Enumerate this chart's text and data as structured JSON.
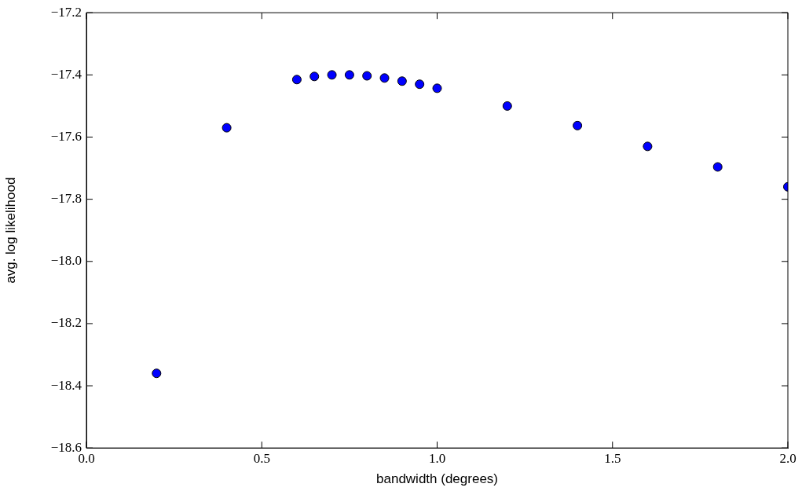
{
  "chart_data": {
    "type": "scatter",
    "xlabel": "bandwidth (degrees)",
    "ylabel": "avg. log likelihood",
    "x": [
      0.2,
      0.4,
      0.6,
      0.65,
      0.7,
      0.75,
      0.8,
      0.85,
      0.9,
      0.95,
      1.0,
      1.2,
      1.4,
      1.6,
      1.8,
      2.0
    ],
    "values": [
      -18.36,
      -17.57,
      -17.415,
      -17.405,
      -17.4,
      -17.4,
      -17.403,
      -17.41,
      -17.42,
      -17.43,
      -17.443,
      -17.5,
      -17.563,
      -17.63,
      -17.696,
      -17.76
    ],
    "color": "#0000ff",
    "marker": "circle",
    "grid": false,
    "legend": false,
    "xlim": [
      0,
      2
    ],
    "xticks": [
      {
        "value": 0,
        "label": "0.0"
      },
      {
        "value": 0.5,
        "label": "0.5"
      },
      {
        "value": 1,
        "label": "1.0"
      },
      {
        "value": 1.5,
        "label": "1.5"
      },
      {
        "value": 2,
        "label": "2.0"
      }
    ],
    "ylim": [
      -18.6,
      -17.2
    ],
    "yticks": [
      {
        "value": -18.6,
        "label": "−18.6"
      },
      {
        "value": -18.4,
        "label": "−18.4"
      },
      {
        "value": -18.2,
        "label": "−18.2"
      },
      {
        "value": -18,
        "label": "−18.0"
      },
      {
        "value": -17.8,
        "label": "−17.8"
      },
      {
        "value": -17.6,
        "label": "−17.6"
      },
      {
        "value": -17.4,
        "label": "−17.4"
      },
      {
        "value": -17.2,
        "label": "−17.2"
      }
    ]
  }
}
